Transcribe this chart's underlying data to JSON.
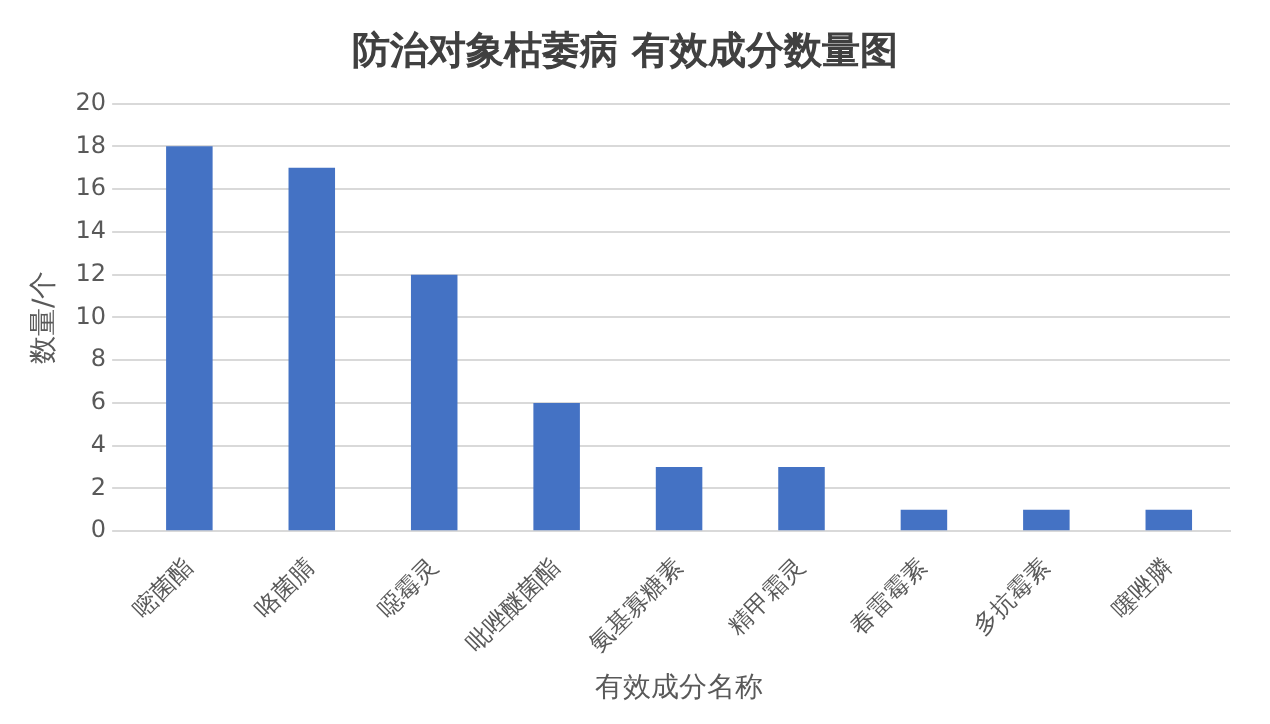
{
  "chart_data": {
    "type": "bar",
    "title": "防治对象枯萎病 有效成分数量图",
    "xlabel": "有效成分名称",
    "ylabel": "数量/个",
    "categories": [
      "嘧菌酯",
      "咯菌腈",
      "噁霉灵",
      "吡唑醚菌酯",
      "氨基寡糖素",
      "精甲霜灵",
      "春雷霉素",
      "多抗霉素",
      "噻唑膦"
    ],
    "values": [
      18,
      17,
      12,
      6,
      3,
      3,
      1,
      1,
      1
    ],
    "color": "#4472c4",
    "ylim": [
      0,
      20
    ],
    "yticks": [
      0,
      2,
      4,
      6,
      8,
      10,
      12,
      14,
      16,
      18,
      20
    ],
    "grid": "y",
    "legend": false
  }
}
